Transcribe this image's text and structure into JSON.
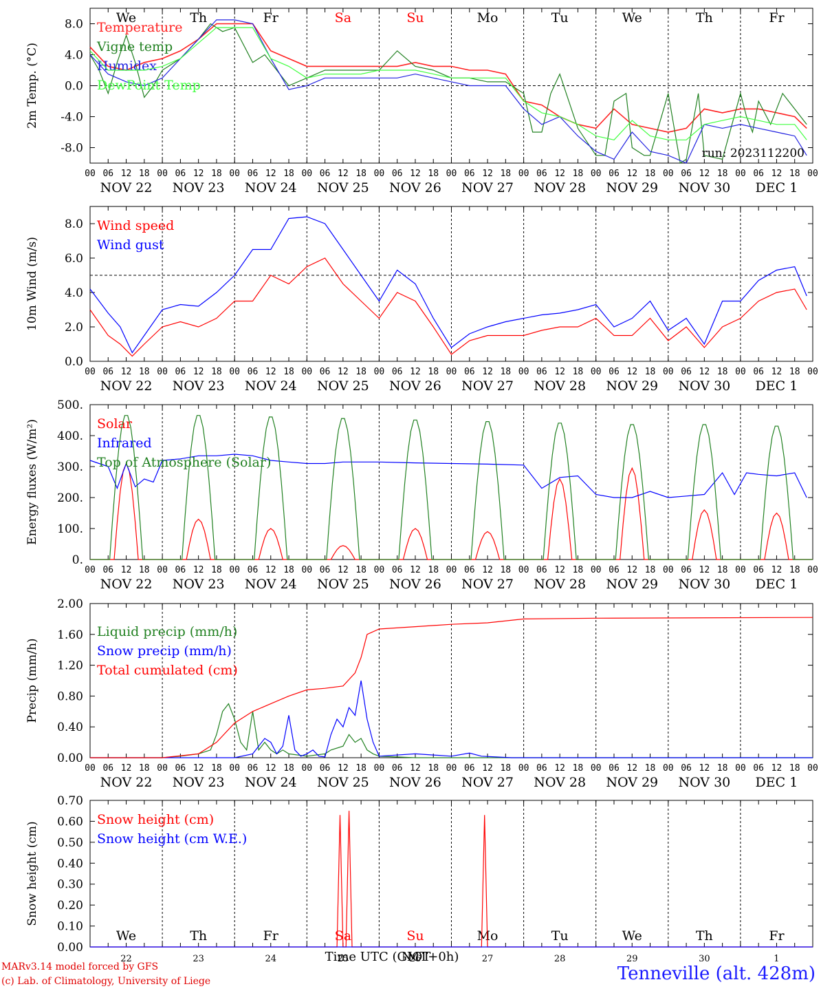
{
  "chart_data": [
    {
      "type": "line",
      "ylabel": "2m Temp. (°C)",
      "ylim": [
        -10,
        10
      ],
      "yticks": [
        "-8.0",
        "-4.0",
        "0.0",
        "4.0",
        "8.0"
      ],
      "ref_line": 0,
      "weekdays": [
        "We",
        "Th",
        "Fr",
        "Sa",
        "Su",
        "Mo",
        "Tu",
        "We",
        "Th",
        "Fr"
      ],
      "annotation": "run: 2023112200",
      "series": [
        {
          "name": "Temperature",
          "color": "#ff2020",
          "x": [
            0,
            6,
            12,
            18,
            24,
            30,
            36,
            42,
            48,
            54,
            60,
            66,
            72,
            78,
            84,
            90,
            96,
            102,
            108,
            114,
            120,
            126,
            132,
            138,
            144,
            150,
            156,
            162,
            168,
            174,
            180,
            186,
            192,
            198,
            204,
            210,
            216,
            222,
            228,
            234,
            238
          ],
          "values": [
            5,
            2.5,
            2,
            3,
            3.5,
            4.5,
            6,
            8,
            8,
            8,
            4.5,
            3.5,
            2.5,
            2.5,
            2.5,
            2.5,
            2.5,
            2.5,
            3,
            2.5,
            2.5,
            2,
            2,
            1.5,
            -2,
            -2.5,
            -4,
            -5,
            -5.5,
            -3,
            -5,
            -5.5,
            -6,
            -5.5,
            -3,
            -3.5,
            -3,
            -3,
            -3.5,
            -4,
            -5.5
          ]
        },
        {
          "name": "Vigne temp",
          "color": "#208020",
          "x": [
            0,
            3,
            6,
            9,
            12,
            15,
            18,
            21,
            24,
            30,
            36,
            40,
            44,
            48,
            54,
            58,
            62,
            66,
            72,
            78,
            84,
            90,
            96,
            102,
            108,
            114,
            120,
            126,
            132,
            138,
            144,
            147,
            150,
            153,
            156,
            162,
            168,
            171,
            174,
            178,
            180,
            184,
            186,
            192,
            196,
            198,
            202,
            204,
            210,
            216,
            218,
            220,
            222,
            226,
            230,
            234,
            238
          ],
          "values": [
            4,
            2,
            -1,
            3,
            6.5,
            3,
            -1.5,
            0,
            2,
            3.5,
            6,
            8,
            7,
            7.5,
            3,
            4,
            2,
            0,
            1,
            2,
            2,
            2,
            2,
            4.5,
            2.5,
            2,
            1,
            1,
            0.5,
            0.5,
            -1,
            -6,
            -6,
            -1,
            1.5,
            -5.5,
            -9,
            -9,
            -2,
            -1,
            -8,
            -9,
            -9,
            -1,
            -10,
            -9.5,
            -1,
            -9,
            -9.5,
            -1,
            -4,
            -6,
            -2,
            -5,
            -1,
            -3,
            -5
          ]
        },
        {
          "name": "Humidex",
          "color": "#2020e0",
          "x": [
            0,
            6,
            12,
            18,
            24,
            30,
            36,
            42,
            48,
            54,
            60,
            66,
            72,
            78,
            84,
            90,
            96,
            102,
            108,
            114,
            120,
            126,
            132,
            138,
            144,
            150,
            156,
            162,
            168,
            174,
            180,
            186,
            192,
            198,
            204,
            210,
            216,
            222,
            228,
            234,
            238
          ],
          "values": [
            4,
            1.5,
            0.5,
            0,
            1,
            3.5,
            6,
            8.5,
            8.5,
            8,
            3.5,
            -0.5,
            0,
            1,
            1,
            1,
            1,
            1,
            1.5,
            1,
            0.5,
            0,
            0,
            0,
            -3,
            -5,
            -4,
            -6.5,
            -8.5,
            -9.5,
            -6,
            -8.5,
            -9,
            -10,
            -5,
            -5.5,
            -5,
            -5.5,
            -6,
            -6.5,
            -9
          ]
        },
        {
          "name": "DewPoint Temp",
          "color": "#40ff40",
          "x": [
            0,
            6,
            12,
            18,
            24,
            30,
            36,
            42,
            48,
            54,
            60,
            66,
            72,
            78,
            84,
            90,
            96,
            102,
            108,
            114,
            120,
            126,
            132,
            138,
            144,
            150,
            156,
            162,
            168,
            174,
            180,
            186,
            192,
            198,
            204,
            210,
            216,
            222,
            228,
            234,
            238
          ],
          "values": [
            4.5,
            2,
            2,
            2,
            2.5,
            3.5,
            5.5,
            7.5,
            7.5,
            7.5,
            3.5,
            2.5,
            1,
            1.5,
            1.5,
            1.5,
            2,
            2,
            2,
            1.5,
            1,
            1,
            1,
            1,
            -2,
            -3.5,
            -4,
            -5,
            -6.5,
            -7,
            -4.5,
            -6.5,
            -7,
            -7,
            -5,
            -4.5,
            -4,
            -4.5,
            -5,
            -5,
            -7
          ]
        }
      ]
    },
    {
      "type": "line",
      "ylabel": "10m Wind (m/s)",
      "ylim": [
        0,
        9
      ],
      "yticks": [
        "0.0",
        "2.0",
        "4.0",
        "6.0",
        "8.0"
      ],
      "ref_line": 5,
      "series": [
        {
          "name": "Wind speed",
          "color": "#ff0000",
          "x": [
            0,
            6,
            10,
            14,
            18,
            24,
            30,
            36,
            42,
            48,
            54,
            60,
            66,
            72,
            78,
            84,
            90,
            96,
            102,
            108,
            114,
            120,
            126,
            132,
            138,
            144,
            150,
            156,
            162,
            168,
            174,
            180,
            186,
            192,
            198,
            204,
            210,
            216,
            222,
            228,
            234,
            238
          ],
          "values": [
            3,
            1.5,
            1,
            0.3,
            1,
            2,
            2.3,
            2,
            2.5,
            3.5,
            3.5,
            5,
            4.5,
            5.5,
            6,
            4.5,
            3.5,
            2.5,
            4,
            3.5,
            2,
            0.4,
            1.2,
            1.5,
            1.5,
            1.5,
            1.8,
            2,
            2,
            2.5,
            1.5,
            1.5,
            2.5,
            1.2,
            2,
            0.8,
            2,
            2.5,
            3.5,
            4,
            4.2,
            3
          ]
        },
        {
          "name": "Wind gust",
          "color": "#0000ff",
          "x": [
            0,
            6,
            10,
            14,
            18,
            24,
            30,
            36,
            42,
            48,
            54,
            60,
            66,
            72,
            78,
            84,
            90,
            96,
            102,
            108,
            114,
            120,
            126,
            132,
            138,
            144,
            150,
            156,
            162,
            168,
            174,
            180,
            186,
            192,
            198,
            204,
            210,
            216,
            222,
            228,
            234,
            238
          ],
          "values": [
            4.2,
            2.8,
            2,
            0.5,
            1.5,
            3,
            3.3,
            3.2,
            4,
            5,
            6.5,
            6.5,
            8.3,
            8.4,
            8,
            6.5,
            5,
            3.5,
            5.3,
            4.5,
            2.5,
            0.8,
            1.6,
            2,
            2.3,
            2.5,
            2.7,
            2.8,
            3,
            3.3,
            2,
            2.5,
            3.5,
            1.8,
            2.5,
            1,
            3.5,
            3.5,
            4.7,
            5.3,
            5.5,
            3.8
          ]
        }
      ]
    },
    {
      "type": "line",
      "ylabel": "Energy fluxes (W/m²)",
      "ylim": [
        0,
        500
      ],
      "yticks": [
        "0.",
        "100.",
        "200.",
        "300.",
        "400.",
        "500."
      ],
      "series": [
        {
          "name": "Solar",
          "color": "#ff0000",
          "peaks": [
            310,
            130,
            100,
            45,
            100,
            90,
            260,
            295,
            160,
            150
          ]
        },
        {
          "name": "Infrared",
          "color": "#0000ff",
          "x": [
            0,
            6,
            9,
            12,
            15,
            18,
            21,
            24,
            30,
            36,
            42,
            48,
            54,
            60,
            66,
            72,
            78,
            84,
            96,
            108,
            120,
            132,
            144,
            150,
            156,
            162,
            168,
            174,
            180,
            186,
            192,
            198,
            204,
            210,
            214,
            218,
            222,
            228,
            234,
            238
          ],
          "values": [
            320,
            300,
            230,
            310,
            235,
            260,
            250,
            320,
            325,
            335,
            335,
            340,
            335,
            320,
            315,
            310,
            310,
            315,
            315,
            312,
            310,
            308,
            305,
            230,
            265,
            270,
            210,
            200,
            200,
            220,
            200,
            205,
            210,
            280,
            210,
            280,
            275,
            270,
            280,
            200
          ]
        },
        {
          "name": "Top of Atmosphere (Solar)",
          "color": "#208020",
          "peaks": [
            470,
            470,
            465,
            460,
            455,
            450,
            445,
            440,
            440,
            435
          ]
        }
      ]
    },
    {
      "type": "line",
      "ylabel": "Precip (mm/h)",
      "ylim": [
        0,
        2
      ],
      "yticks": [
        "0.00",
        "0.40",
        "0.80",
        "1.20",
        "1.60",
        "2.00"
      ],
      "series": [
        {
          "name": "Liquid precip (mm/h)",
          "color": "#208020",
          "x": [
            0,
            24,
            30,
            36,
            40,
            42,
            44,
            46,
            48,
            50,
            52,
            54,
            56,
            58,
            60,
            62,
            64,
            66,
            72,
            78,
            80,
            84,
            86,
            88,
            90,
            92,
            94,
            96,
            108,
            120,
            240
          ],
          "values": [
            0,
            0,
            0.02,
            0.05,
            0.1,
            0.3,
            0.6,
            0.7,
            0.5,
            0.2,
            0.1,
            0.6,
            0.1,
            0.2,
            0.1,
            0.05,
            0.1,
            0.05,
            0.02,
            0.05,
            0.1,
            0.15,
            0.3,
            0.2,
            0.25,
            0.1,
            0.05,
            0.02,
            0,
            0,
            0
          ]
        },
        {
          "name": "Snow precip (mm/h)",
          "color": "#0000ff",
          "x": [
            0,
            36,
            48,
            54,
            56,
            58,
            60,
            62,
            64,
            66,
            68,
            70,
            72,
            74,
            76,
            78,
            80,
            82,
            84,
            86,
            88,
            90,
            92,
            94,
            96,
            108,
            120,
            126,
            130,
            140,
            240
          ],
          "values": [
            0,
            0,
            0,
            0.05,
            0.15,
            0.25,
            0.2,
            0.05,
            0.15,
            0.55,
            0.1,
            0.02,
            0.05,
            0.1,
            0.02,
            0.01,
            0.3,
            0.5,
            0.4,
            0.65,
            0.55,
            1.0,
            0.5,
            0.2,
            0.02,
            0.05,
            0.02,
            0.06,
            0.02,
            0,
            0
          ]
        },
        {
          "name": "Total cumulated (cm)",
          "color": "#ff0000",
          "x": [
            0,
            24,
            36,
            42,
            48,
            54,
            60,
            66,
            72,
            78,
            84,
            88,
            90,
            92,
            96,
            108,
            120,
            132,
            144,
            168,
            240
          ],
          "values": [
            0,
            0,
            0.05,
            0.2,
            0.45,
            0.6,
            0.7,
            0.8,
            0.88,
            0.9,
            0.93,
            1.1,
            1.3,
            1.6,
            1.67,
            1.7,
            1.73,
            1.75,
            1.8,
            1.81,
            1.82
          ]
        }
      ]
    },
    {
      "type": "line",
      "ylabel": "Snow height (cm)",
      "ylim": [
        0,
        0.7
      ],
      "yticks": [
        "0.00",
        "0.10",
        "0.20",
        "0.30",
        "0.40",
        "0.50",
        "0.60",
        "0.70"
      ],
      "weekdays": [
        "We",
        "Th",
        "Fr",
        "Sa",
        "Su",
        "Mo",
        "Tu",
        "We",
        "Th",
        "Fr"
      ],
      "day_numbers": [
        "22",
        "23",
        "24",
        "25",
        "26",
        "27",
        "28",
        "29",
        "30",
        "1"
      ],
      "series": [
        {
          "name": "Snow height (cm)",
          "color": "#ff0000",
          "x": [
            0,
            82,
            83,
            84,
            85,
            86,
            87,
            130,
            131,
            132,
            240
          ],
          "values": [
            0,
            0,
            0.63,
            0,
            0,
            0.65,
            0,
            0,
            0.63,
            0,
            0
          ]
        },
        {
          "name": "Snow height (cm W.E.)",
          "color": "#0000ff",
          "x": [
            0,
            240
          ],
          "values": [
            0,
            0
          ]
        }
      ]
    }
  ],
  "axis": {
    "hours": [
      "00",
      "06",
      "12",
      "18"
    ],
    "final_hour": "00",
    "dates": [
      "NOV 22",
      "NOV 23",
      "NOV 24",
      "NOV 25",
      "NOV 26",
      "NOV 27",
      "NOV 28",
      "NOV 29",
      "NOV 30",
      "DEC  1"
    ],
    "xlabel": "Time UTC (GMT+0h)",
    "xlabel_overlap": "NOT"
  },
  "weekday_colors": {
    "default": "#000000",
    "weekend": "#ff0000"
  },
  "weekend_days": [
    "Sa",
    "Su"
  ],
  "footer": {
    "credit_line1": "MARv3.14 model forced by GFS",
    "credit_line2": "(c) Lab. of Climatology, University of Liege",
    "station": "Tenneville (alt. 428m)"
  }
}
